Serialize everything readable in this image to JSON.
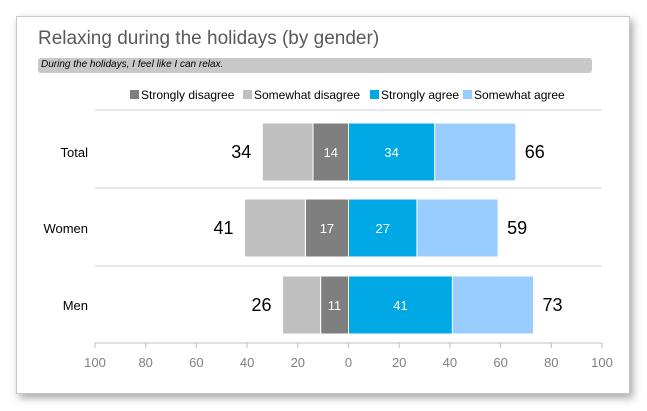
{
  "title": "Relaxing during the holidays (by gender)",
  "subtitle": "During the holidays, I feel like I can relax.",
  "colors": {
    "strongly_disagree": "#7f7f7f",
    "somewhat_disagree": "#bfbfbf",
    "strongly_agree": "#00a9e6",
    "somewhat_agree": "#99ccff"
  },
  "chart_data": {
    "type": "bar",
    "orientation": "horizontal",
    "stacked": "diverging",
    "title": "Relaxing during the holidays (by gender)",
    "subtitle": "During the holidays, I feel like I can relax.",
    "categories": [
      "Total",
      "Women",
      "Men"
    ],
    "legend": [
      "Strongly disagree",
      "Somewhat disagree",
      "Strongly agree",
      "Somewhat agree"
    ],
    "legend_position": "top",
    "series": [
      {
        "name": "Strongly disagree",
        "values": [
          14,
          17,
          11
        ],
        "side": "negative",
        "label_inside": true
      },
      {
        "name": "Somewhat disagree",
        "values": [
          20,
          24,
          15
        ],
        "side": "negative",
        "label_inside": false
      },
      {
        "name": "Strongly agree",
        "values": [
          34,
          27,
          41
        ],
        "side": "positive",
        "label_inside": true
      },
      {
        "name": "Somewhat agree",
        "values": [
          32,
          32,
          32
        ],
        "side": "positive",
        "label_inside": false
      }
    ],
    "disagree_totals": [
      34,
      41,
      26
    ],
    "agree_totals": [
      66,
      59,
      73
    ],
    "xlim": [
      -100,
      100
    ],
    "xticks": [
      -100,
      -80,
      -60,
      -40,
      -20,
      0,
      20,
      40,
      60,
      80,
      100
    ],
    "xtick_labels": [
      "100",
      "80",
      "60",
      "40",
      "20",
      "0",
      "20",
      "40",
      "60",
      "80",
      "100"
    ],
    "xlabel": "",
    "ylabel": "",
    "grid": "horizontal separators"
  }
}
